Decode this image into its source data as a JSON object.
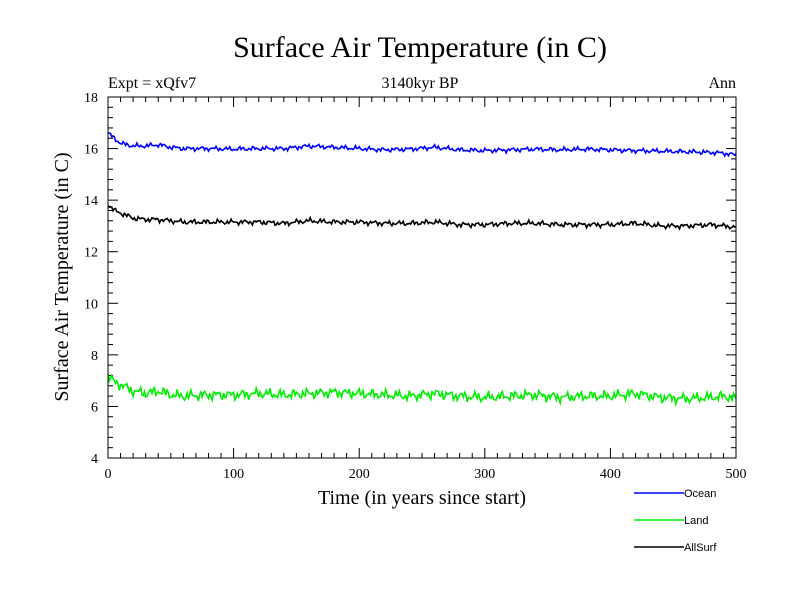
{
  "chart_data": {
    "type": "line",
    "title": "Surface Air Temperature (in C)",
    "subtitle": "3140kyr BP",
    "left_note": "Expt = xQfv7",
    "right_note": "Ann",
    "xlabel": "Time (in years since start)",
    "ylabel": "Surface Air Temperature (in C)",
    "xlim": [
      0,
      500
    ],
    "ylim": [
      4,
      18
    ],
    "xticks": [
      "0",
      "100",
      "200",
      "300",
      "400",
      "500"
    ],
    "yticks": [
      "4",
      "6",
      "8",
      "10",
      "12",
      "14",
      "16",
      "18"
    ],
    "grid": false,
    "legend_position": "bottom-right, below plot",
    "series": [
      {
        "name": "Ocean",
        "color": "#0000ff",
        "x": [
          0,
          5,
          10,
          20,
          30,
          40,
          50,
          60,
          80,
          100,
          120,
          140,
          160,
          180,
          200,
          220,
          240,
          260,
          280,
          300,
          320,
          340,
          360,
          380,
          400,
          420,
          440,
          460,
          480,
          490,
          500
        ],
        "values": [
          16.6,
          16.4,
          16.2,
          16.1,
          16.1,
          16.15,
          16.05,
          16.0,
          16.0,
          15.98,
          16.0,
          16.0,
          16.1,
          16.05,
          16.0,
          15.95,
          15.98,
          16.05,
          15.95,
          15.92,
          15.95,
          15.98,
          15.95,
          15.98,
          15.95,
          15.92,
          15.9,
          15.88,
          15.85,
          15.82,
          15.75
        ]
      },
      {
        "name": "Land",
        "color": "#00ee00",
        "x": [
          0,
          5,
          10,
          20,
          30,
          40,
          50,
          60,
          80,
          100,
          120,
          140,
          160,
          180,
          200,
          220,
          240,
          260,
          280,
          300,
          320,
          340,
          360,
          380,
          400,
          420,
          440,
          460,
          480,
          490,
          500
        ],
        "values": [
          7.2,
          6.95,
          6.85,
          6.6,
          6.5,
          6.6,
          6.45,
          6.4,
          6.45,
          6.45,
          6.5,
          6.45,
          6.5,
          6.55,
          6.5,
          6.45,
          6.4,
          6.5,
          6.4,
          6.35,
          6.4,
          6.45,
          6.35,
          6.4,
          6.4,
          6.5,
          6.35,
          6.3,
          6.35,
          6.4,
          6.3
        ]
      },
      {
        "name": "AllSurf",
        "color": "#000000",
        "x": [
          0,
          5,
          10,
          20,
          30,
          40,
          50,
          60,
          80,
          100,
          120,
          140,
          160,
          180,
          200,
          220,
          240,
          260,
          280,
          300,
          320,
          340,
          360,
          380,
          400,
          420,
          440,
          460,
          480,
          490,
          500
        ],
        "values": [
          13.85,
          13.6,
          13.5,
          13.3,
          13.25,
          13.25,
          13.2,
          13.15,
          13.15,
          13.15,
          13.15,
          13.1,
          13.2,
          13.15,
          13.15,
          13.1,
          13.1,
          13.15,
          13.05,
          13.05,
          13.1,
          13.1,
          13.05,
          13.05,
          13.05,
          13.1,
          13.0,
          13.0,
          13.05,
          13.0,
          12.95
        ]
      }
    ]
  }
}
